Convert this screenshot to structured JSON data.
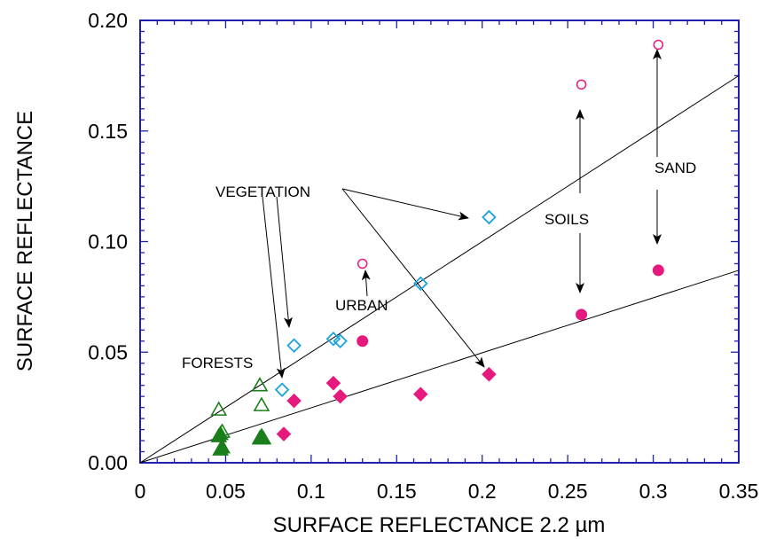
{
  "chart_data": {
    "type": "scatter",
    "title": "",
    "xlabel": "SURFACE REFLECTANCE 2.2 µm",
    "ylabel": "SURFACE REFLECTANCE",
    "xlim": [
      0,
      0.35
    ],
    "ylim": [
      0,
      0.2
    ],
    "x_ticks": [
      "0",
      "0.05",
      "0.1",
      "0.15",
      "0.2",
      "0.25",
      "0.3",
      "0.35"
    ],
    "y_ticks": [
      "0.00",
      "0.05",
      "0.10",
      "0.15",
      "0.20"
    ],
    "grid": false,
    "colors": {
      "forest": "#1a7f1a",
      "vegetation": "#1aa3e0",
      "magenta": "#e6197f",
      "frame": "#1f1fb0"
    },
    "series": [
      {
        "marker": "open-triangle",
        "color": "#1a7f1a",
        "points": [
          [
            0.046,
            0.024
          ],
          [
            0.048,
            0.014
          ],
          [
            0.07,
            0.035
          ],
          [
            0.071,
            0.026
          ]
        ]
      },
      {
        "marker": "filled-triangle",
        "color": "#1a7f1a",
        "points": [
          [
            0.046,
            0.012
          ],
          [
            0.047,
            0.013
          ],
          [
            0.048,
            0.007
          ],
          [
            0.047,
            0.006
          ],
          [
            0.07,
            0.011
          ],
          [
            0.071,
            0.012
          ],
          [
            0.072,
            0.011
          ]
        ]
      },
      {
        "marker": "open-diamond",
        "color": "#1aa3e0",
        "points": [
          [
            0.083,
            0.033
          ],
          [
            0.09,
            0.053
          ],
          [
            0.113,
            0.056
          ],
          [
            0.117,
            0.055
          ],
          [
            0.164,
            0.081
          ],
          [
            0.204,
            0.111
          ]
        ]
      },
      {
        "marker": "filled-diamond",
        "color": "#e6197f",
        "points": [
          [
            0.084,
            0.013
          ],
          [
            0.09,
            0.028
          ],
          [
            0.113,
            0.036
          ],
          [
            0.117,
            0.03
          ],
          [
            0.164,
            0.031
          ],
          [
            0.204,
            0.04
          ]
        ]
      },
      {
        "marker": "open-circle",
        "color": "#e6197f",
        "points": [
          [
            0.13,
            0.09
          ],
          [
            0.258,
            0.171
          ],
          [
            0.303,
            0.189
          ]
        ]
      },
      {
        "marker": "filled-circle",
        "color": "#e6197f",
        "points": [
          [
            0.13,
            0.055
          ],
          [
            0.258,
            0.067
          ],
          [
            0.303,
            0.087
          ]
        ]
      }
    ],
    "lines": [
      {
        "from": [
          0,
          0
        ],
        "to": [
          0.35,
          0.175
        ]
      },
      {
        "from": [
          0,
          0
        ],
        "to": [
          0.35,
          0.087
        ]
      }
    ],
    "annotations": [
      {
        "label": "VEGETATION"
      },
      {
        "label": "URBAN"
      },
      {
        "label": "SOILS"
      },
      {
        "label": "SAND"
      },
      {
        "label": "FORESTS"
      }
    ]
  }
}
